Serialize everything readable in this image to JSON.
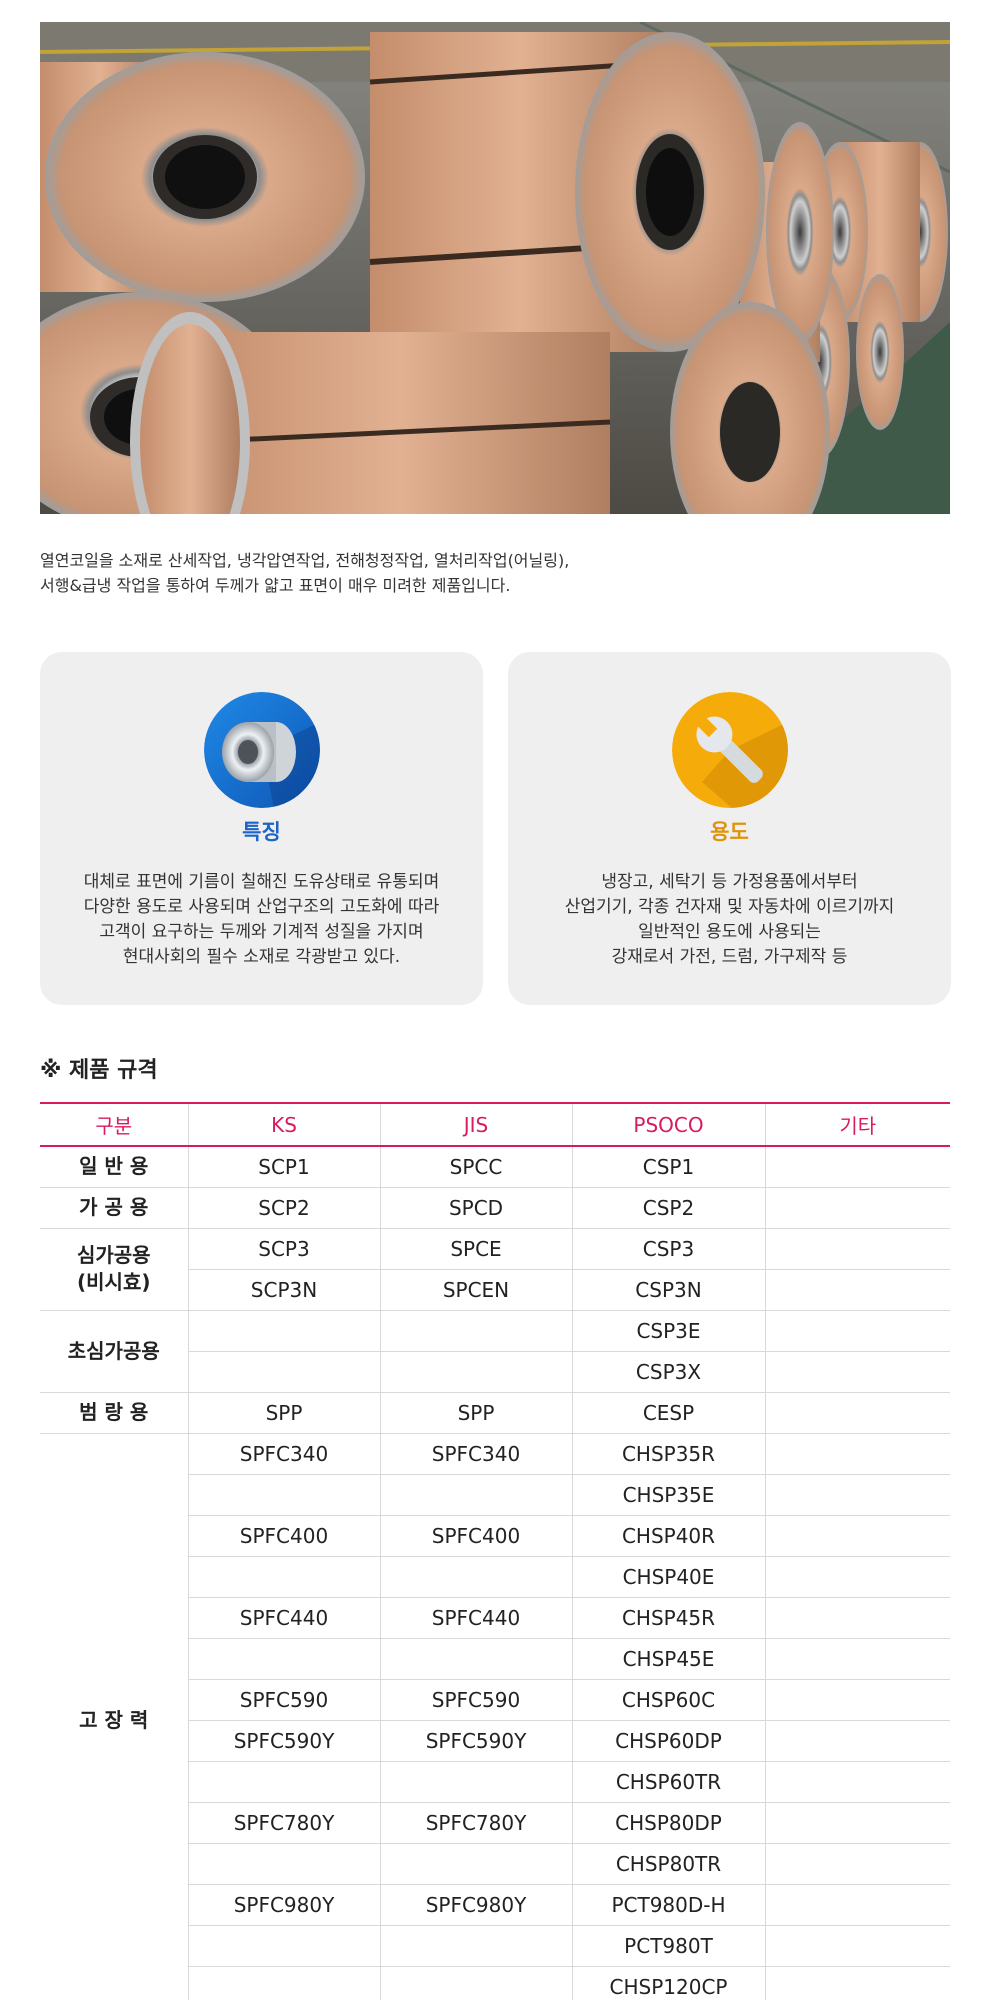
{
  "intro": {
    "line1": "열연코일을 소재로 산세작업, 냉각압연작업, 전해청정작업, 열처리작업(어닐링),",
    "line2": "서행&급냉  작업을 통하여 두께가 얇고 표면이 매우 미려한 제품입니다."
  },
  "features": {
    "icon": "steel-coil-icon",
    "title": "특징",
    "lines": [
      "대체로 표면에 기름이 칠해진 도유상태로 유통되며",
      "다양한 용도로 사용되며 산업구조의 고도화에 따라",
      "고객이 요구하는 두께와 기계적 성질을 가지며",
      "현대사회의 필수 소재로 각광받고 있다."
    ]
  },
  "usage": {
    "icon": "wrench-icon",
    "title": "용도",
    "lines": [
      "냉장고, 세탁기 등 가정용품에서부터",
      "산업기기, 각종 건자재 및 자동차에 이르기까지",
      "일반적인 용도에 사용되는",
      "강재로서 가전, 드럼, 가구제작 등"
    ]
  },
  "spec": {
    "title": "※ 제품 규격",
    "headers": [
      "구분",
      "KS",
      "JIS",
      "PSOCO",
      "기타"
    ],
    "rows": [
      {
        "cat": "일 반 용",
        "ks": "SCP1",
        "jis": "SPCC",
        "psoco": "CSP1",
        "etc": ""
      },
      {
        "cat": "가 공 용",
        "ks": "SCP2",
        "jis": "SPCD",
        "psoco": "CSP2",
        "etc": ""
      },
      {
        "cat_line1": "심가공용",
        "cat_line2": "(비시효)",
        "ks": "SCP3",
        "jis": "SPCE",
        "psoco": "CSP3",
        "etc": ""
      },
      {
        "ks": "SCP3N",
        "jis": "SPCEN",
        "psoco": "CSP3N",
        "etc": ""
      },
      {
        "cat": "초심가공용",
        "ks": "",
        "jis": "",
        "psoco": "CSP3E",
        "etc": ""
      },
      {
        "ks": "",
        "jis": "",
        "psoco": "CSP3X",
        "etc": ""
      },
      {
        "cat": "범 랑 용",
        "ks": "SPP",
        "jis": "SPP",
        "psoco": "CESP",
        "etc": ""
      },
      {
        "cat": "고 장 력",
        "ks": "SPFC340",
        "jis": "SPFC340",
        "psoco": "CHSP35R",
        "etc": ""
      },
      {
        "ks": "",
        "jis": "",
        "psoco": "CHSP35E",
        "etc": ""
      },
      {
        "ks": "SPFC400",
        "jis": "SPFC400",
        "psoco": "CHSP40R",
        "etc": ""
      },
      {
        "ks": "",
        "jis": "",
        "psoco": "CHSP40E",
        "etc": ""
      },
      {
        "ks": "SPFC440",
        "jis": "SPFC440",
        "psoco": "CHSP45R",
        "etc": ""
      },
      {
        "ks": "",
        "jis": "",
        "psoco": "CHSP45E",
        "etc": ""
      },
      {
        "ks": "SPFC590",
        "jis": "SPFC590",
        "psoco": "CHSP60C",
        "etc": ""
      },
      {
        "ks": "SPFC590Y",
        "jis": "SPFC590Y",
        "psoco": "CHSP60DP",
        "etc": ""
      },
      {
        "ks": "",
        "jis": "",
        "psoco": "CHSP60TR",
        "etc": ""
      },
      {
        "ks": "SPFC780Y",
        "jis": "SPFC780Y",
        "psoco": "CHSP80DP",
        "etc": ""
      },
      {
        "ks": "",
        "jis": "",
        "psoco": "CHSP80TR",
        "etc": ""
      },
      {
        "ks": "SPFC980Y",
        "jis": "SPFC980Y",
        "psoco": "PCT980D-H",
        "etc": ""
      },
      {
        "ks": "",
        "jis": "",
        "psoco": "PCT980T",
        "etc": ""
      },
      {
        "ks": "",
        "jis": "",
        "psoco": "CHSP120CP",
        "etc": ""
      }
    ]
  },
  "colors": {
    "accent": "#d81b60",
    "feature_blue": "#1e63c8",
    "usage_orange": "#e0930a",
    "card_bg": "#efefef"
  }
}
